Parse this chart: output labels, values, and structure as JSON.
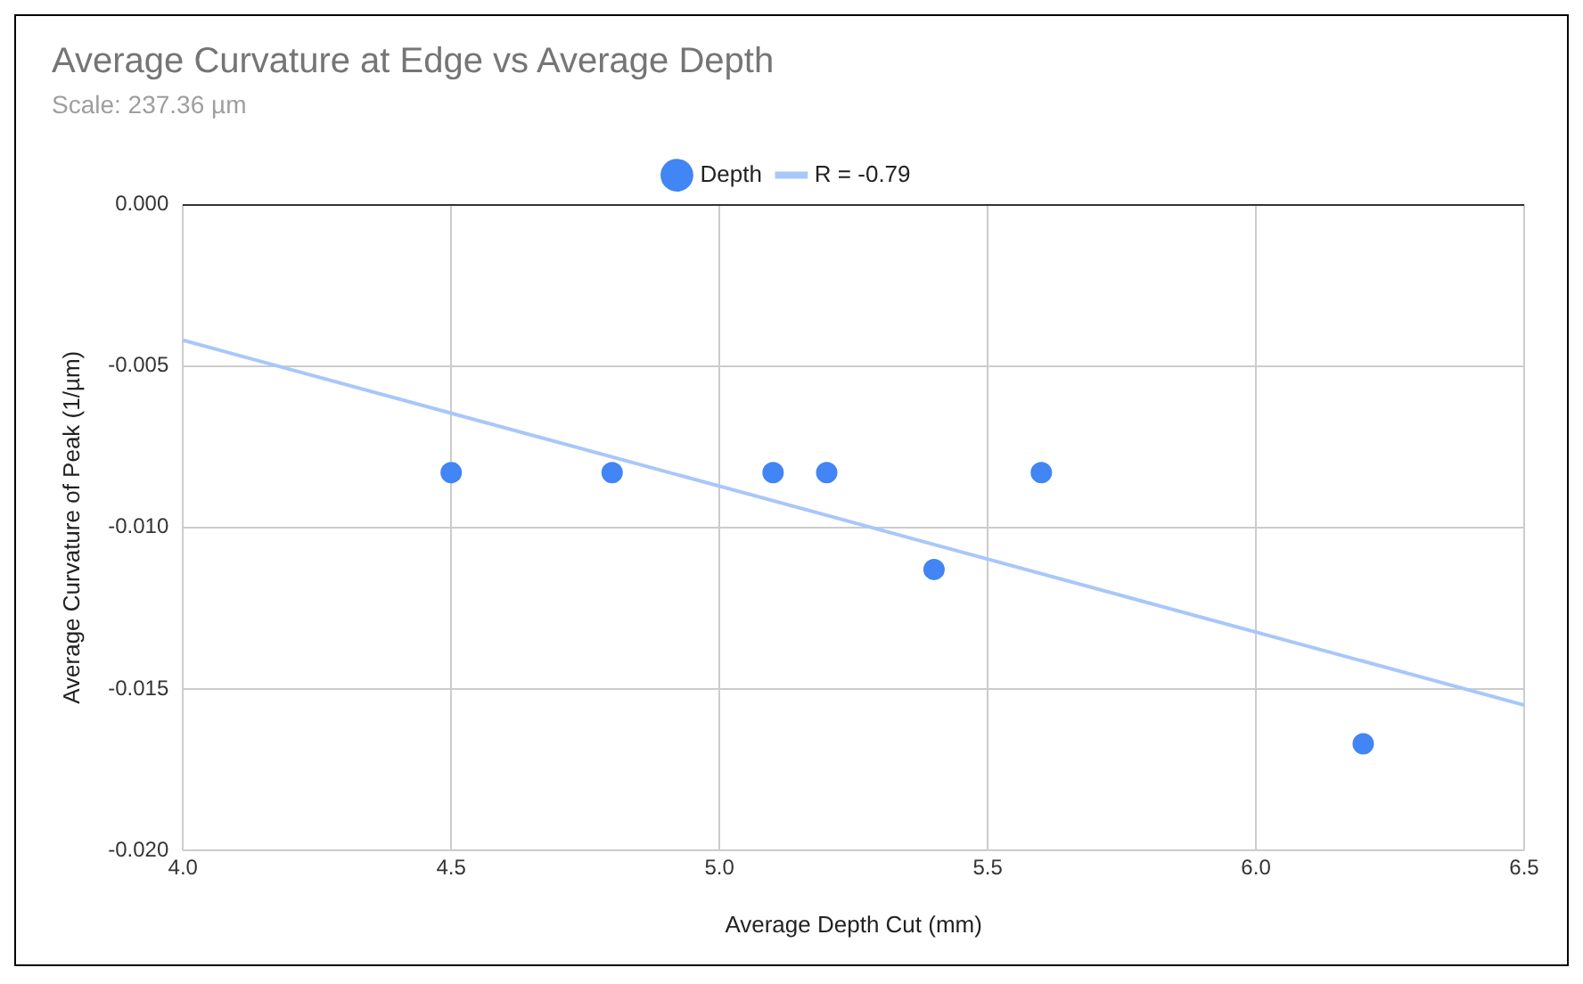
{
  "chart_data": {
    "type": "scatter",
    "title": "Average Curvature at Edge vs Average Depth",
    "subtitle": "Scale: 237.36 µm",
    "xlabel": "Average Depth Cut (mm)",
    "ylabel": "Average Curvature of Peak (1/µm)",
    "x": [
      4.5,
      4.8,
      5.1,
      5.2,
      5.4,
      5.6,
      6.2
    ],
    "series": [
      {
        "name": "Depth",
        "color": "#4285f4",
        "type": "scatter",
        "marker": "circle",
        "values": [
          -0.0083,
          -0.0083,
          -0.0083,
          -0.0083,
          -0.0113,
          -0.0083,
          -0.0167
        ]
      },
      {
        "name": "R = -0.79",
        "color": "#a8c7fa",
        "type": "line",
        "marker": "none",
        "x": [
          4.0,
          6.5
        ],
        "values": [
          -0.0042,
          -0.0155
        ]
      }
    ],
    "xlim": [
      4.0,
      6.5
    ],
    "xticks": [
      {
        "value": 4.0,
        "label": "4.0"
      },
      {
        "value": 4.5,
        "label": "4.5"
      },
      {
        "value": 5.0,
        "label": "5.0"
      },
      {
        "value": 5.5,
        "label": "5.5"
      },
      {
        "value": 6.0,
        "label": "6.0"
      },
      {
        "value": 6.5,
        "label": "6.5"
      }
    ],
    "ylim": [
      -0.02,
      0
    ],
    "yticks": [
      {
        "value": 0,
        "label": "0.000"
      },
      {
        "value": -0.005,
        "label": "-0.005"
      },
      {
        "value": -0.01,
        "label": "-0.010"
      },
      {
        "value": -0.015,
        "label": "-0.015"
      },
      {
        "value": -0.02,
        "label": "-0.020"
      }
    ],
    "grid": true,
    "legend": "top"
  }
}
